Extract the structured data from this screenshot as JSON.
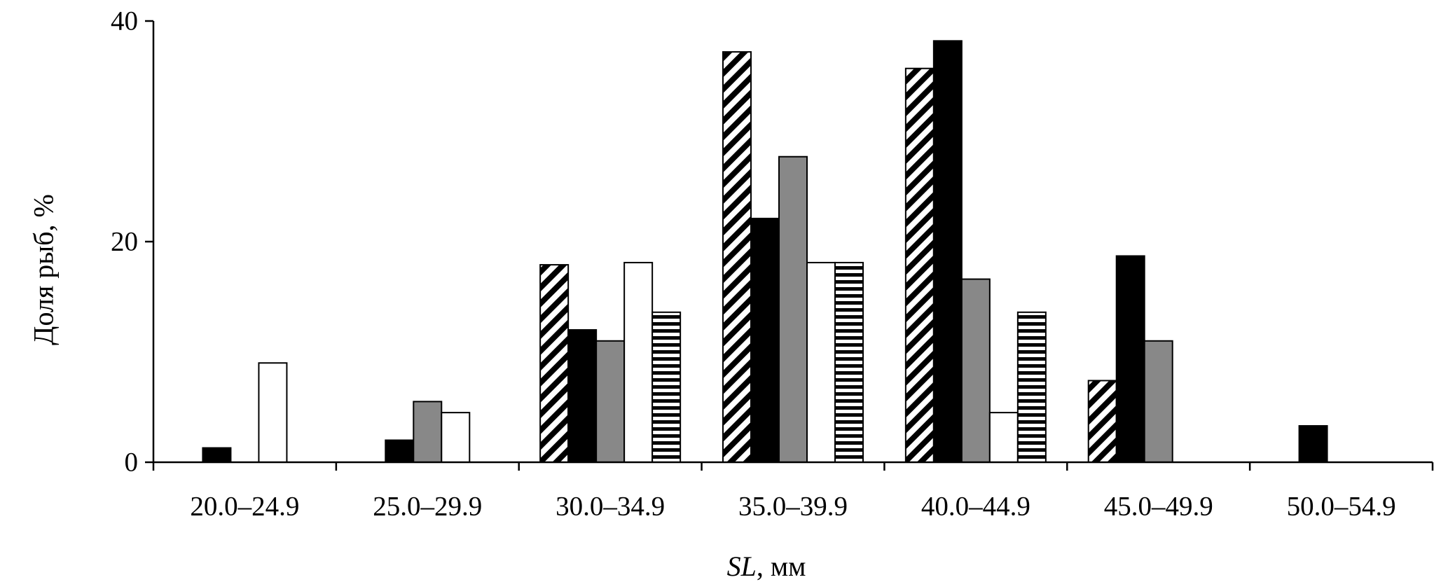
{
  "chart_data": {
    "type": "bar",
    "title": "",
    "xlabel_italic": "SL",
    "xlabel_rest": ", мм",
    "ylabel": "Доля рыб, %",
    "ylim": [
      0,
      40
    ],
    "yticks": [
      "0",
      "20",
      "40"
    ],
    "grid": false,
    "categories": [
      "20.0–24.9",
      "25.0–29.9",
      "30.0–34.9",
      "35.0–39.9",
      "40.0–44.9",
      "45.0–49.9",
      "50.0–54.9"
    ],
    "series": [
      {
        "pattern": "diagonal-hatch",
        "values": [
          0,
          0,
          17.9,
          37.2,
          35.7,
          7.4,
          0
        ]
      },
      {
        "pattern": "black",
        "values": [
          1.3,
          2.0,
          12.0,
          22.1,
          38.2,
          18.7,
          3.3
        ]
      },
      {
        "pattern": "gray",
        "values": [
          0,
          5.5,
          11.0,
          27.7,
          16.6,
          11.0,
          0
        ]
      },
      {
        "pattern": "white",
        "values": [
          9.0,
          4.5,
          18.1,
          18.1,
          4.5,
          0,
          0
        ]
      },
      {
        "pattern": "horizontal-hatch",
        "values": [
          0,
          0,
          13.6,
          18.1,
          13.6,
          0,
          0
        ]
      }
    ],
    "colors": {
      "black": "#000000",
      "gray": "#888888",
      "white": "#ffffff",
      "axis": "#000000"
    }
  }
}
